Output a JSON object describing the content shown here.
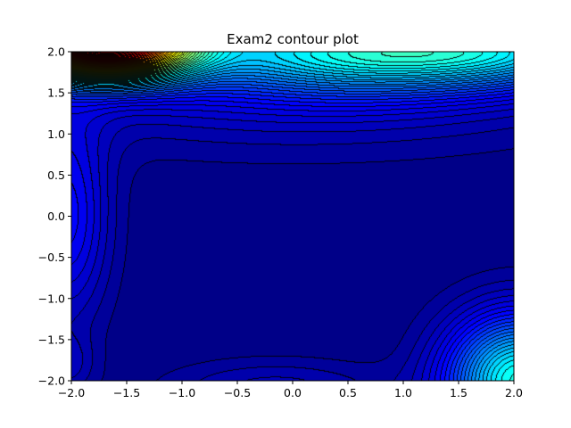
{
  "chart_data": {
    "type": "heatmap",
    "subtype": "filled-contour",
    "title": "Exam2 contour plot",
    "xlabel": "",
    "ylabel": "",
    "xlim": [
      -2.0,
      2.0
    ],
    "ylim": [
      -2.0,
      2.0
    ],
    "x_ticks": [
      -2.0,
      -1.5,
      -1.0,
      -0.5,
      0.0,
      0.5,
      1.0,
      1.5,
      2.0
    ],
    "y_ticks": [
      -2.0,
      -1.5,
      -1.0,
      -0.5,
      0.0,
      0.5,
      1.0,
      1.5,
      2.0
    ],
    "x_tick_labels": [
      "−2.0",
      "−1.5",
      "−1.0",
      "−0.5",
      "0.0",
      "0.5",
      "1.0",
      "1.5",
      "2.0"
    ],
    "y_tick_labels": [
      "−2.0",
      "−1.5",
      "−1.0",
      "−0.5",
      "0.0",
      "0.5",
      "1.0",
      "1.5",
      "2.0"
    ],
    "colormap": "jet",
    "contour_line_color": "#000000",
    "grid": false,
    "legend": "none",
    "features": [
      {
        "kind": "peak",
        "x": -1.7,
        "y": 2.0,
        "level": 1.0
      },
      {
        "kind": "ridge",
        "x": 0.5,
        "y": 1.9,
        "level": 0.3
      },
      {
        "kind": "ridge",
        "x": 2.0,
        "y": 1.95,
        "level": 0.2
      },
      {
        "kind": "bump",
        "x": -2.0,
        "y": 0.0,
        "level": 0.13
      },
      {
        "kind": "bump",
        "x": 2.0,
        "y": -1.9,
        "level": 0.35
      },
      {
        "kind": "bump",
        "x": -0.15,
        "y": -2.0,
        "level": 0.06
      },
      {
        "kind": "bump",
        "x": -2.0,
        "y": -1.8,
        "level": 0.05
      }
    ]
  }
}
